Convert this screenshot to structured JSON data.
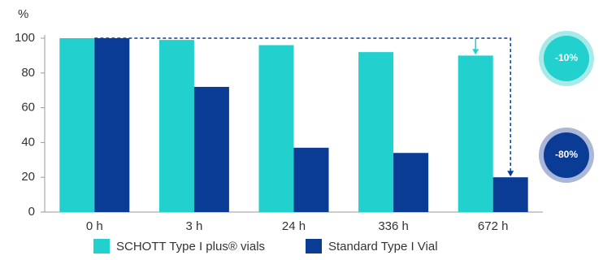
{
  "chart_data": {
    "type": "bar",
    "y_label": "%",
    "categories": [
      "0 h",
      "3 h",
      "24 h",
      "336 h",
      "672 h"
    ],
    "series": [
      {
        "name": "SCHOTT Type I plus® vials",
        "color": "#22d0ce",
        "values": [
          100,
          99,
          96,
          92,
          90
        ]
      },
      {
        "name": "Standard Type I Vial",
        "color": "#0a3c96",
        "values": [
          100,
          72,
          37,
          34,
          20
        ]
      }
    ],
    "ylim": [
      0,
      100
    ],
    "yticks": [
      0,
      20,
      40,
      60,
      80,
      100
    ],
    "annotations": [
      "-10%",
      "-80%"
    ]
  }
}
